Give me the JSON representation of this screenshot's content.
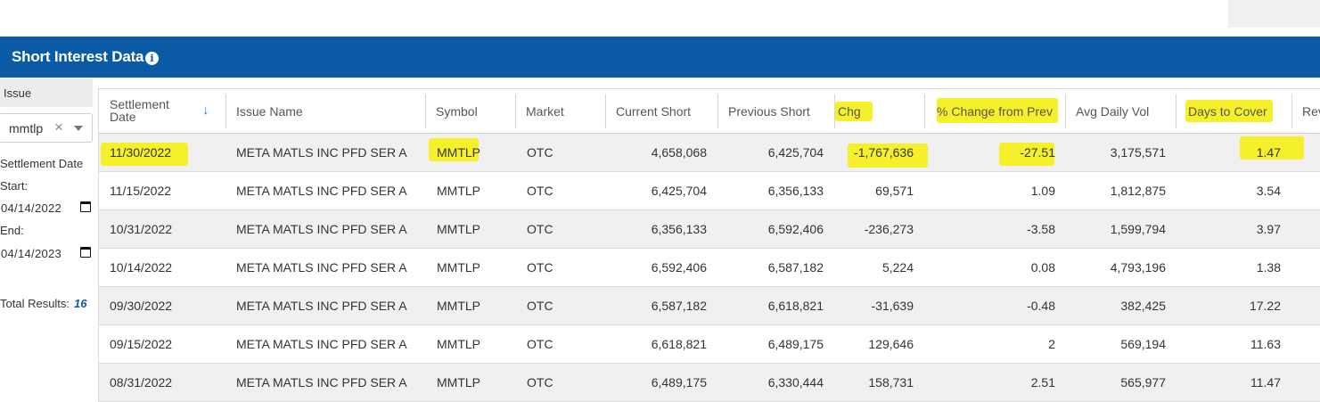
{
  "header": {
    "title": "Short Interest Data",
    "info_icon": "info-icon"
  },
  "filters": {
    "issue_tab": "Issue",
    "issue_value": "mmtlp",
    "clear_glyph": "×",
    "settlement_label": "Settlement Date",
    "start_label": "Start:",
    "start_value": "04/14/2022",
    "end_label": "End:",
    "end_value": "04/14/2023",
    "total_label": "Total Results:",
    "total_value": "16"
  },
  "table": {
    "columns": [
      "Settlement Date",
      "Issue Name",
      "Symbol",
      "Market",
      "Current Short",
      "Previous Short",
      "Chg",
      "% Change from Prev",
      "Avg Daily Vol",
      "Days to Cover",
      "Rev"
    ],
    "rows": [
      [
        "11/30/2022",
        "META MATLS INC PFD SER A",
        "MMTLP",
        "OTC",
        "4,658,068",
        "6,425,704",
        "-1,767,636",
        "-27.51",
        "3,175,571",
        "1.47"
      ],
      [
        "11/15/2022",
        "META MATLS INC PFD SER A",
        "MMTLP",
        "OTC",
        "6,425,704",
        "6,356,133",
        "69,571",
        "1.09",
        "1,812,875",
        "3.54"
      ],
      [
        "10/31/2022",
        "META MATLS INC PFD SER A",
        "MMTLP",
        "OTC",
        "6,356,133",
        "6,592,406",
        "-236,273",
        "-3.58",
        "1,599,794",
        "3.97"
      ],
      [
        "10/14/2022",
        "META MATLS INC PFD SER A",
        "MMTLP",
        "OTC",
        "6,592,406",
        "6,587,182",
        "5,224",
        "0.08",
        "4,793,196",
        "1.38"
      ],
      [
        "09/30/2022",
        "META MATLS INC PFD SER A",
        "MMTLP",
        "OTC",
        "6,587,182",
        "6,618,821",
        "-31,639",
        "-0.48",
        "382,425",
        "17.22"
      ],
      [
        "09/15/2022",
        "META MATLS INC PFD SER A",
        "MMTLP",
        "OTC",
        "6,618,821",
        "6,489,175",
        "129,646",
        "2",
        "569,194",
        "11.63"
      ],
      [
        "08/31/2022",
        "META MATLS INC PFD SER A",
        "MMTLP",
        "OTC",
        "6,489,175",
        "6,330,444",
        "158,731",
        "2.51",
        "565,977",
        "11.47"
      ]
    ]
  },
  "colors": {
    "banner": "#0b5aa5",
    "highlight": "#f6f02a",
    "row_alt": "#f0f0f0",
    "total_accent": "#0b5aa5"
  }
}
